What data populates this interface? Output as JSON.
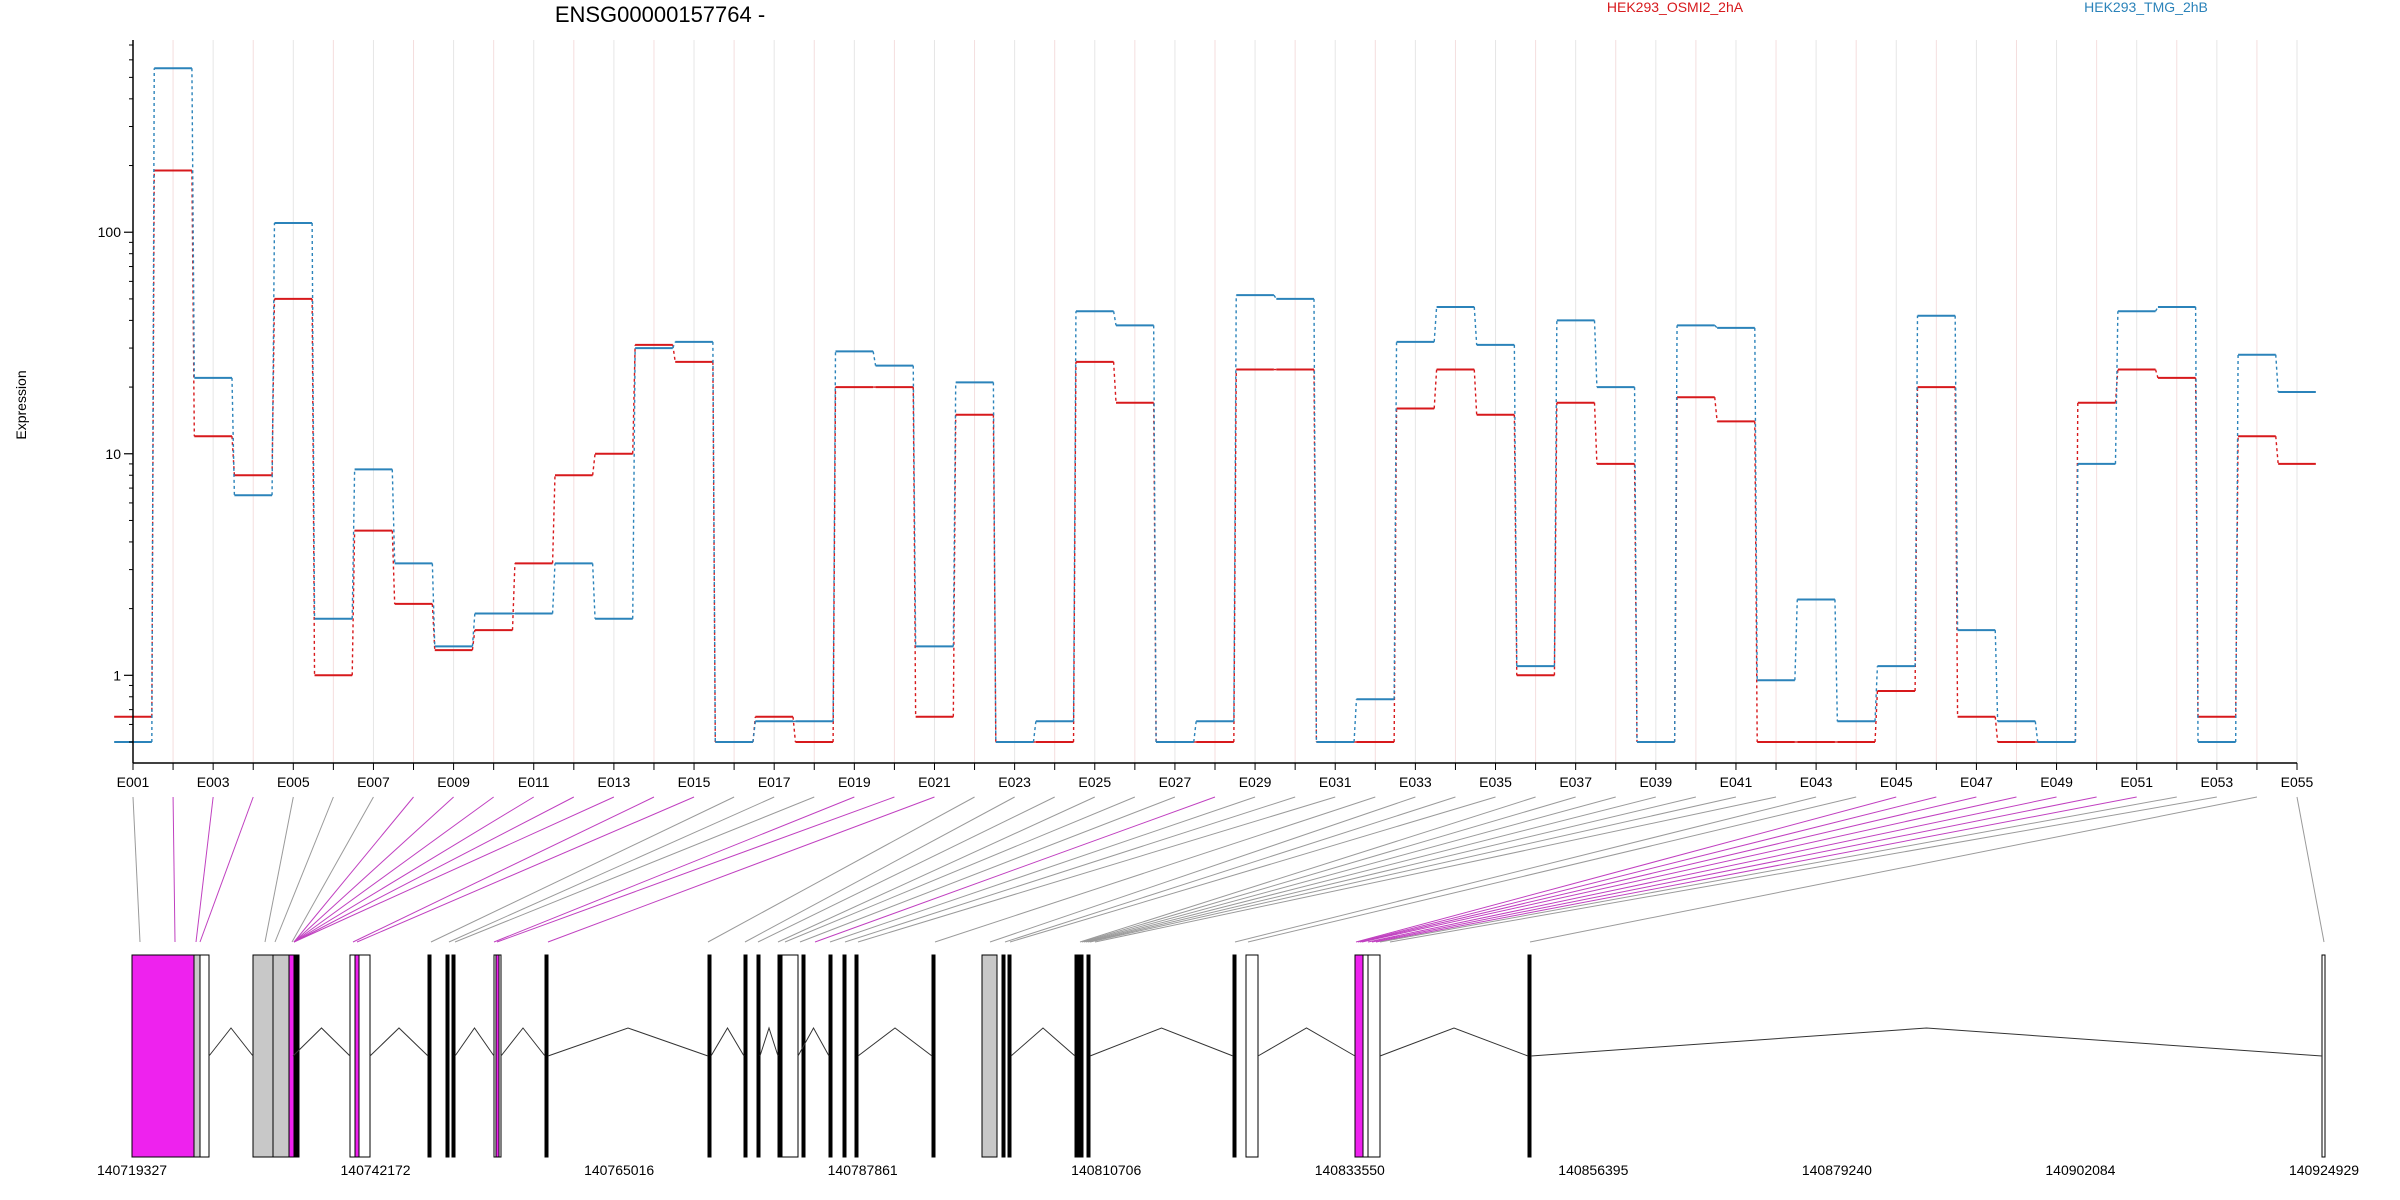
{
  "chart_data": [
    {
      "type": "line",
      "title": "ENSG00000157764 -",
      "xlabel": "",
      "ylabel": "Expression",
      "y_scale": "log",
      "ylim": [
        0.5,
        700
      ],
      "y_ticks": [
        {
          "value": 1,
          "label": "1"
        },
        {
          "value": 10,
          "label": "10"
        },
        {
          "value": 100,
          "label": "100"
        }
      ],
      "grid": "vertical",
      "legend": "top-right",
      "categories": [
        "E001",
        "E002",
        "E003",
        "E004",
        "E005",
        "E006",
        "E007",
        "E008",
        "E009",
        "E010",
        "E011",
        "E012",
        "E013",
        "E014",
        "E015",
        "E016",
        "E017",
        "E018",
        "E019",
        "E020",
        "E021",
        "E022",
        "E023",
        "E024",
        "E025",
        "E026",
        "E027",
        "E028",
        "E029",
        "E030",
        "E031",
        "E032",
        "E033",
        "E034",
        "E035",
        "E036",
        "E037",
        "E038",
        "E039",
        "E040",
        "E041",
        "E042",
        "E043",
        "E044",
        "E045",
        "E046",
        "E047",
        "E048",
        "E049",
        "E050",
        "E051",
        "E052",
        "E053",
        "E054",
        "E055"
      ],
      "tick_labels": [
        "E001",
        "E003",
        "E005",
        "E007",
        "E009",
        "E011",
        "E013",
        "E015",
        "E017",
        "E019",
        "E021",
        "E023",
        "E025",
        "E027",
        "E029",
        "E031",
        "E033",
        "E035",
        "E037",
        "E039",
        "E041",
        "E043",
        "E045",
        "E047",
        "E049",
        "E051",
        "E053",
        "E055"
      ],
      "series": [
        {
          "name": "HEK293_OSMI2_2hA",
          "color": "#d7191c",
          "values": [
            0.65,
            190,
            12,
            8,
            50,
            1.0,
            4.5,
            2.1,
            1.3,
            1.6,
            3.2,
            8,
            10,
            31,
            26,
            0.5,
            0.65,
            0.5,
            20,
            20,
            0.65,
            15,
            0.5,
            0.5,
            26,
            17,
            0.5,
            0.5,
            24,
            24,
            0.5,
            0.5,
            16,
            24,
            15,
            1.0,
            17,
            9,
            0.5,
            18,
            14,
            0.5,
            0.5,
            0.5,
            0.85,
            20,
            0.65,
            0.5,
            0.5,
            17,
            24,
            22,
            0.65,
            12,
            9
          ]
        },
        {
          "name": "HEK293_TMG_2hB",
          "color": "#2b83ba",
          "values": [
            0.5,
            550,
            22,
            6.5,
            110,
            1.8,
            8.5,
            3.2,
            1.35,
            1.9,
            1.9,
            3.2,
            1.8,
            30,
            32,
            0.5,
            0.62,
            0.62,
            29,
            25,
            1.35,
            21,
            0.5,
            0.62,
            44,
            38,
            0.5,
            0.62,
            52,
            50,
            0.5,
            0.78,
            32,
            46,
            31,
            1.1,
            40,
            20,
            0.5,
            38,
            37,
            0.95,
            2.2,
            0.62,
            1.1,
            42,
            1.6,
            0.62,
            0.5,
            9,
            44,
            46,
            0.5,
            28,
            19
          ]
        }
      ]
    },
    {
      "type": "gene-model",
      "x_ticks": [
        "140719327",
        "140742172",
        "140765016",
        "140787861",
        "140810706",
        "140833550",
        "140856395",
        "140879240",
        "140902084",
        "140924929"
      ],
      "highlight_color": "#ee22ee",
      "exon_fill": "#ffffff",
      "intron_only_fill": "#c8c8c8"
    }
  ]
}
